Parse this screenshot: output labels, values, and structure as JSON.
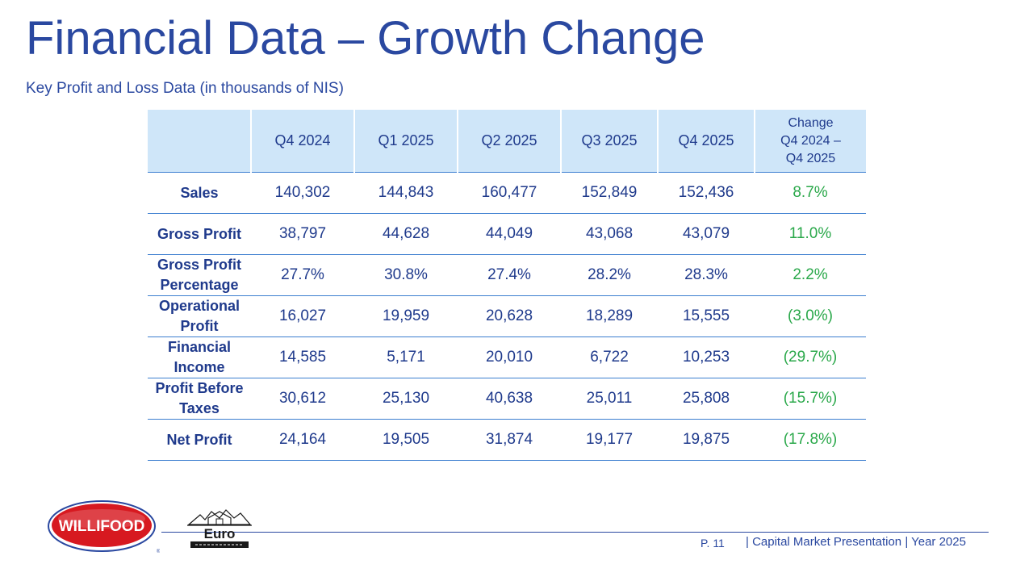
{
  "slide": {
    "title": "Financial Data – Growth Change",
    "subtitle": "Key Profit and Loss Data (in thousands of NIS)"
  },
  "table": {
    "headers": {
      "blank": "",
      "q4_2024": "Q4 2024",
      "q1_2025": "Q1 2025",
      "q2_2025": "Q2 2025",
      "q3_2025": "Q3 2025",
      "q4_2025": "Q4 2025",
      "change_line1": "Change",
      "change_line2": "Q4 2024 –",
      "change_line3": "Q4 2025"
    },
    "rows": [
      {
        "label": "Sales",
        "label_line2": "",
        "values": [
          "140,302",
          "144,843",
          "160,477",
          "152,849",
          "152,436"
        ],
        "change": "8.7%"
      },
      {
        "label": "Gross Profit",
        "label_line2": "",
        "values": [
          "38,797",
          "44,628",
          "44,049",
          "43,068",
          "43,079"
        ],
        "change": "11.0%"
      },
      {
        "label": "Gross Profit",
        "label_line2": "Percentage",
        "values": [
          "27.7%",
          "30.8%",
          "27.4%",
          "28.2%",
          "28.3%"
        ],
        "change": "2.2%"
      },
      {
        "label": "Operational",
        "label_line2": "Profit",
        "values": [
          "16,027",
          "19,959",
          "20,628",
          "18,289",
          "15,555"
        ],
        "change": "(3.0%)"
      },
      {
        "label": "Financial",
        "label_line2": "Income",
        "values": [
          "14,585",
          "5,171",
          "20,010",
          "6,722",
          "10,253"
        ],
        "change": "(29.7%)"
      },
      {
        "label": "Profit Before",
        "label_line2": "Taxes",
        "values": [
          "30,612",
          "25,130",
          "40,638",
          "25,011",
          "25,808"
        ],
        "change": "(15.7%)"
      },
      {
        "label": "Net Profit",
        "label_line2": "",
        "values": [
          "24,164",
          "19,505",
          "31,874",
          "19,177",
          "19,875"
        ],
        "change": "(17.8%)"
      }
    ]
  },
  "footer": {
    "page": "P. 11",
    "text": "| Capital Market Presentation | Year 2025"
  },
  "logos": {
    "willifood": "WILLIFOOD",
    "euro": "Euro"
  },
  "colors": {
    "brand_blue": "#2a48a0",
    "header_fill": "#cfe6f9",
    "positive_green": "#2aa84a",
    "willifood_red": "#d71920"
  }
}
